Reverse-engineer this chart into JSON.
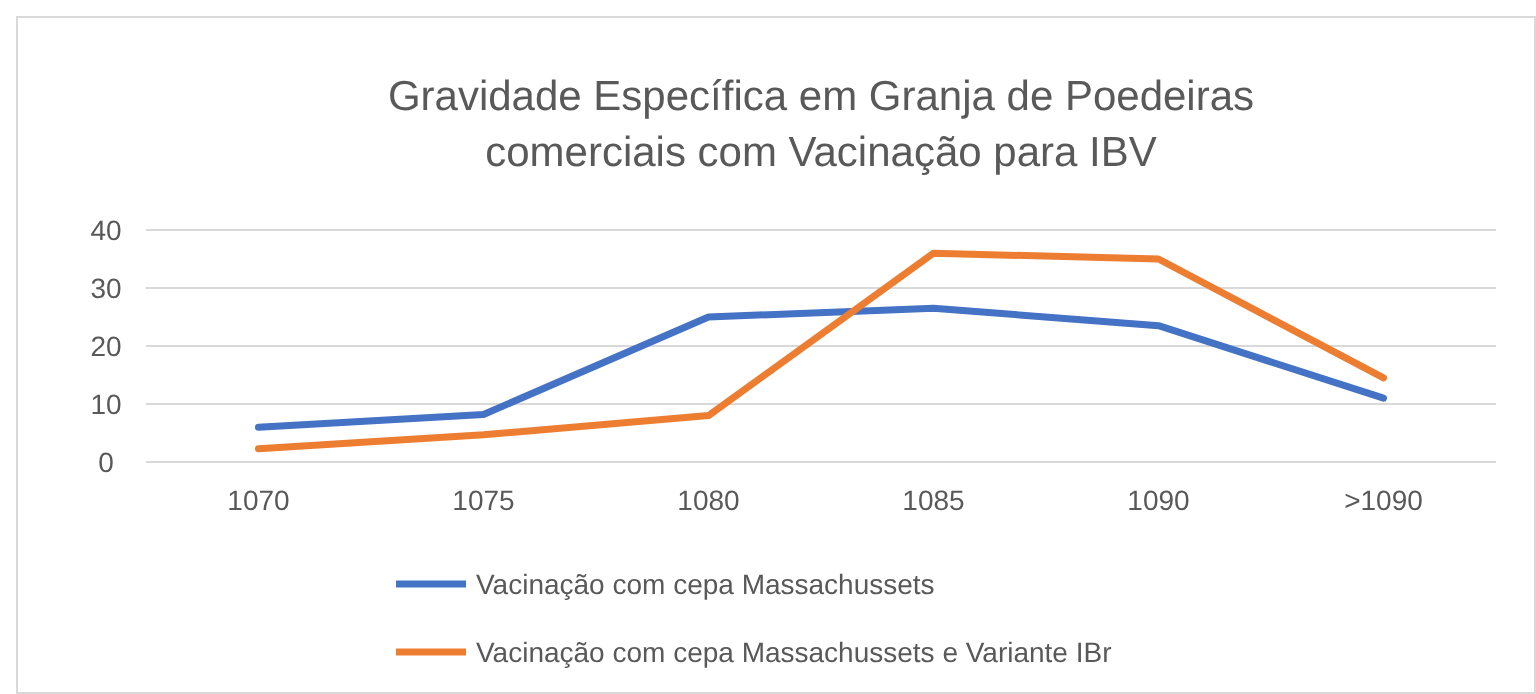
{
  "chart_data": {
    "type": "line",
    "title": "Gravidade Específica em Granja de Poedeiras\ncomerciais com  Vacinação para IBV",
    "categories": [
      "1070",
      "1075",
      "1080",
      "1085",
      "1090",
      ">1090"
    ],
    "series": [
      {
        "name": "Vacinação com cepa Massachussets",
        "color": "#4472c4",
        "values": [
          6,
          8.2,
          25,
          26.5,
          23.5,
          11
        ]
      },
      {
        "name": "Vacinação com cepa Massachussets e Variante IBr",
        "color": "#ed7d31",
        "values": [
          2.3,
          4.7,
          8,
          36,
          35,
          14.5
        ]
      }
    ],
    "ylim": [
      0,
      40
    ],
    "yticks": [
      0,
      10,
      20,
      30,
      40
    ],
    "grid": "y",
    "legend": "bottom",
    "marker": "none",
    "line_style": "solid"
  }
}
